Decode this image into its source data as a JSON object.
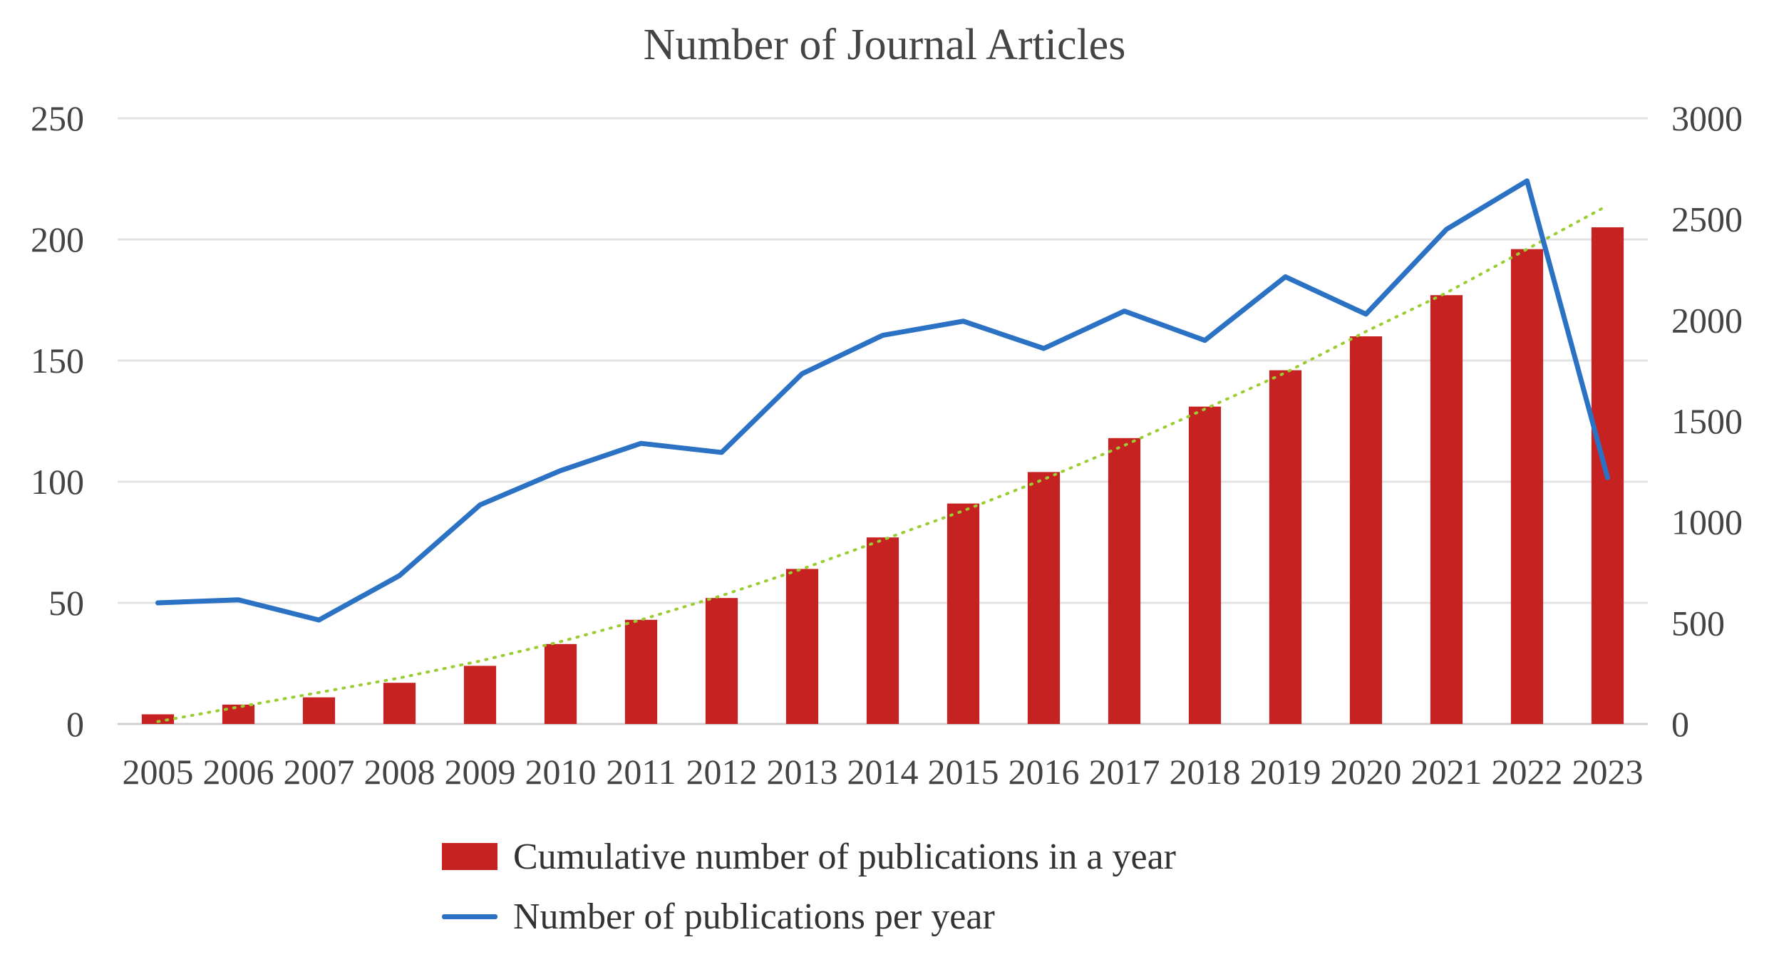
{
  "chart_data": {
    "type": "bar",
    "title": "Number of Journal Articles",
    "categories": [
      "2005",
      "2006",
      "2007",
      "2008",
      "2009",
      "2010",
      "2011",
      "2012",
      "2013",
      "2014",
      "2015",
      "2016",
      "2017",
      "2018",
      "2019",
      "2020",
      "2021",
      "2022",
      "2023"
    ],
    "series": [
      {
        "name": "Cumulative number of publications in a year",
        "type": "bar",
        "axis": "left",
        "color": "#C72222",
        "values": [
          4,
          8,
          11,
          17,
          24,
          33,
          43,
          52,
          64,
          77,
          91,
          104,
          118,
          131,
          146,
          160,
          177,
          196,
          205
        ]
      },
      {
        "name": "Number of publications per year",
        "type": "line",
        "axis": "right",
        "color": "#2B72C4",
        "values": [
          600,
          615,
          515,
          735,
          1085,
          1255,
          1390,
          1345,
          1735,
          1925,
          1995,
          1860,
          2045,
          1900,
          2215,
          2030,
          2450,
          2690,
          1220
        ]
      }
    ],
    "trendline": {
      "type": "polynomial",
      "axis": "left",
      "color": "#9ACD32",
      "style": "dotted",
      "values": [
        1,
        7,
        13,
        19,
        26,
        34,
        43,
        53,
        64,
        76,
        88,
        101,
        115,
        130,
        145,
        162,
        178,
        196,
        214
      ]
    },
    "left_axis": {
      "ylim": [
        0,
        250
      ],
      "ticks": [
        "0",
        "50",
        "100",
        "150",
        "200",
        "250"
      ],
      "tick_values": [
        0,
        50,
        100,
        150,
        200,
        250
      ]
    },
    "right_axis": {
      "ylim": [
        0,
        3000
      ],
      "ticks": [
        "0",
        "500",
        "1000",
        "1500",
        "2000",
        "2500",
        "3000"
      ],
      "tick_values": [
        0,
        500,
        1000,
        1500,
        2000,
        2500,
        3000
      ]
    },
    "grid": true,
    "legend": "bottom-left"
  }
}
